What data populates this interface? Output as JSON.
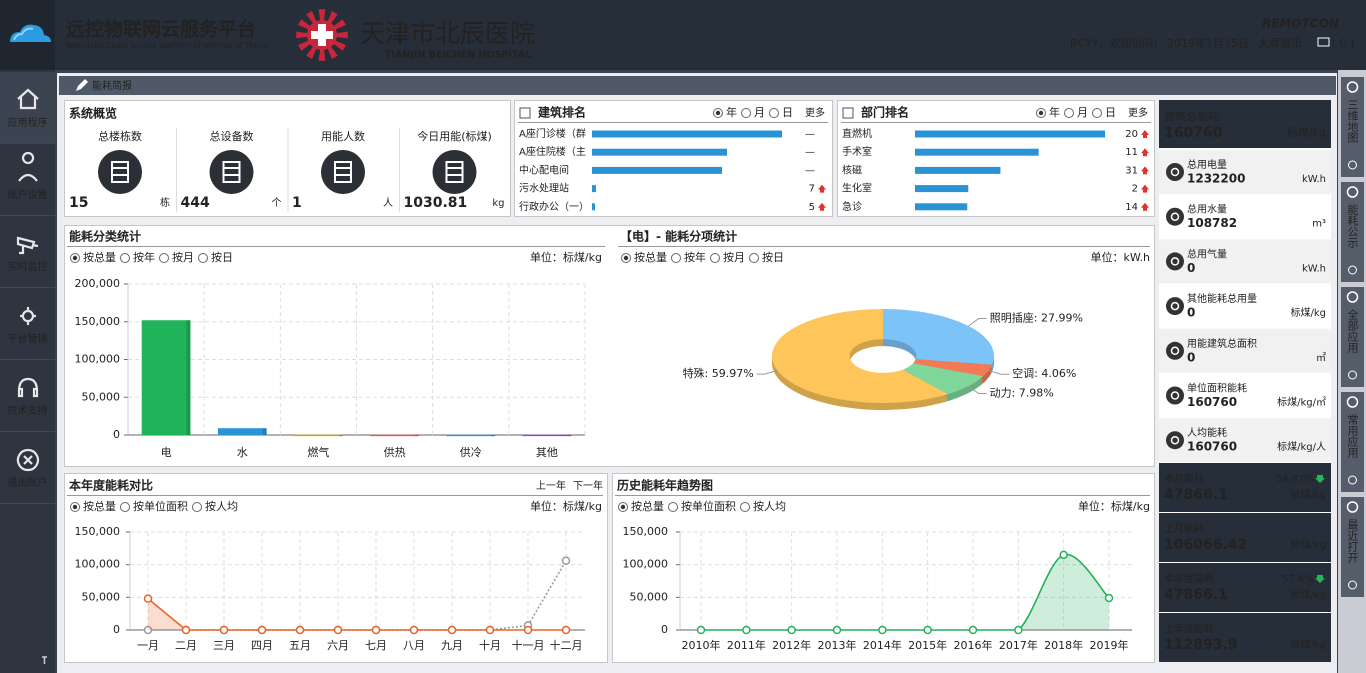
{
  "header": {
    "title": "远控物联网云服务平台",
    "subtitle": "Remotcon Cloud service platform of Internet of Things",
    "hospital": "天津市北辰医院",
    "hospital_en": "TIANJIN BEICHEN HOSPITAL",
    "brand": "REMOTCON",
    "greeting": "BCYY，欢迎访问！",
    "date": "2019年1月15日",
    "big_screen": "大屏展示",
    "messages": "( 0 )"
  },
  "nav": [
    "应用程序",
    "账户设置",
    "实时监控",
    "平台管理",
    "技术支持",
    "退出账户"
  ],
  "side_nav": [
    "三维地图",
    "能耗公示",
    "全部应用",
    "常用应用",
    "最近打开"
  ],
  "breadcrumb": "能耗简报",
  "overview": {
    "title": "系统概览",
    "items": [
      {
        "label": "总楼栋数",
        "value": 15,
        "unit": "栋"
      },
      {
        "label": "总设备数",
        "value": 444,
        "unit": "个"
      },
      {
        "label": "用能人数",
        "value": 1,
        "unit": "人"
      },
      {
        "label": "今日用能(标煤)",
        "value": 1030.81,
        "unit": "kg"
      }
    ]
  },
  "building_rank": {
    "title": "建筑排名",
    "options": [
      "年",
      "月",
      "日"
    ],
    "selected": 0,
    "more": "更多",
    "rows": [
      {
        "name": "A座门诊楼（群",
        "value": 950,
        "change": "—"
      },
      {
        "name": "A座住院楼（主",
        "value": 675,
        "change": "—"
      },
      {
        "name": "中心配电间",
        "value": 650,
        "change": "—"
      },
      {
        "name": "污水处理站",
        "value": 20,
        "change": 7
      },
      {
        "name": "行政办公（一）",
        "value": 15,
        "change": 5
      }
    ]
  },
  "dept_rank": {
    "title": "部门排名",
    "options": [
      "年",
      "月",
      "日"
    ],
    "selected": 0,
    "more": "更多",
    "rows": [
      {
        "name": "直燃机",
        "value": 189,
        "change": 20
      },
      {
        "name": "手术室",
        "value": 123,
        "change": 11
      },
      {
        "name": "核磁",
        "value": 85,
        "change": 31
      },
      {
        "name": "生化室",
        "value": 53,
        "change": 2
      },
      {
        "name": "急诊",
        "value": 52,
        "change": 14
      }
    ]
  },
  "summary": [
    {
      "label": "建筑总能耗",
      "value": 160760,
      "unit": "标煤/kg"
    },
    {
      "label": "总用电量",
      "value": 1232200,
      "unit": "kW.h"
    },
    {
      "label": "总用水量",
      "value": 108782,
      "unit": "m³"
    },
    {
      "label": "总用气量",
      "value": 0,
      "unit": "kW.h"
    },
    {
      "label": "其他能耗总用量",
      "value": 0,
      "unit": "标煤/kg"
    },
    {
      "label": "用能建筑总面积",
      "value": 0,
      "unit": "㎡"
    },
    {
      "label": "单位面积能耗",
      "value": 160760,
      "unit": "标煤/kg/㎡"
    },
    {
      "label": "人均能耗",
      "value": 160760,
      "unit": "标煤/kg/人"
    }
  ],
  "periods": [
    {
      "label": "本月能耗",
      "value": 47866.1,
      "percent": "54.87%",
      "unit": "标煤/kg"
    },
    {
      "label": "上月能耗",
      "value": 106066.42,
      "unit": "标煤/kg"
    },
    {
      "label": "本年度能耗",
      "value": 47866.1,
      "percent": "57.6%",
      "unit": "标煤/kg"
    },
    {
      "label": "上年度能耗",
      "value": 112893.9,
      "unit": "标煤/kg"
    }
  ],
  "chart_data": [
    {
      "type": "bar",
      "title": "能耗分类统计",
      "options": [
        "按总量",
        "按年",
        "按月",
        "按日"
      ],
      "selected": 0,
      "unit": "单位：标煤/kg",
      "categories": [
        "电",
        "水",
        "燃气",
        "供热",
        "供冷",
        "其他"
      ],
      "values": [
        152000,
        9000,
        500,
        500,
        500,
        500
      ],
      "colors": [
        "#1fb35a",
        "#2a93d5",
        "#c9a227",
        "#e0544a",
        "#2a93d5",
        "#a040c0"
      ],
      "ylim": [
        0,
        200000
      ],
      "yticks": [
        0,
        {
          "value": 50000,
          "label": "50,000"
        },
        {
          "value": 100000,
          "label": "100,000"
        },
        {
          "value": 150000,
          "label": "150,000"
        },
        {
          "value": 200000,
          "label": "200,000"
        }
      ],
      "grid": true
    },
    {
      "type": "pie",
      "title": "【电】- 能耗分项统计",
      "options": [
        "按总量",
        "按年",
        "按月",
        "按日"
      ],
      "selected": 0,
      "unit": "单位：kW.h",
      "values": [
        27.99,
        4.06,
        7.98,
        59.97
      ],
      "value_labels": [
        "照明插座: 27.99%",
        "空调: 4.06%",
        "动力: 7.98%",
        "特殊: 59.97%"
      ],
      "colors": [
        "#7cc3f7",
        "#f47a55",
        "#80d79c",
        "#fdc55a"
      ]
    },
    {
      "type": "line",
      "title": "本年度能耗对比",
      "nav": [
        "上一年",
        "下一年"
      ],
      "options": [
        "按总量",
        "按单位面积",
        "按人均"
      ],
      "selected": 0,
      "unit": "单位：标煤/kg",
      "categories": [
        "一月",
        "二月",
        "三月",
        "四月",
        "五月",
        "六月",
        "七月",
        "八月",
        "九月",
        "十月",
        "十一月",
        "十二月"
      ],
      "series": [
        {
          "color": "#999999",
          "dash": "dotted",
          "values": [
            0,
            0,
            0,
            0,
            0,
            0,
            0,
            0,
            0,
            0,
            7000,
            106000
          ]
        },
        {
          "color": "#e8632b",
          "area": true,
          "values": [
            48000,
            0,
            0,
            0,
            0,
            0,
            0,
            0,
            0,
            0,
            0,
            0
          ]
        }
      ],
      "ylim": [
        0,
        150000
      ],
      "yticks": [
        0,
        {
          "value": 50000,
          "label": "50,000"
        },
        {
          "value": 100000,
          "label": "100,000"
        },
        {
          "value": 150000,
          "label": "150,000"
        }
      ],
      "grid": true
    },
    {
      "type": "line",
      "title": "历史能耗年趋势图",
      "options": [
        "按总量",
        "按单位面积",
        "按人均"
      ],
      "selected": 0,
      "unit": "单位：标煤/kg",
      "categories": [
        "2010年",
        "2011年",
        "2012年",
        "2013年",
        "2014年",
        "2015年",
        "2016年",
        "2017年",
        "2018年",
        "2019年"
      ],
      "series": [
        {
          "color": "#22b05a",
          "area": true,
          "smooth": true,
          "values": [
            0,
            0,
            0,
            0,
            0,
            0,
            0,
            0,
            115000,
            49000
          ]
        }
      ],
      "ylim": [
        0,
        150000
      ],
      "yticks": [
        0,
        {
          "value": 50000,
          "label": "50,000"
        },
        {
          "value": 100000,
          "label": "100,000"
        },
        {
          "value": 150000,
          "label": "150,000"
        }
      ],
      "grid": true
    }
  ]
}
